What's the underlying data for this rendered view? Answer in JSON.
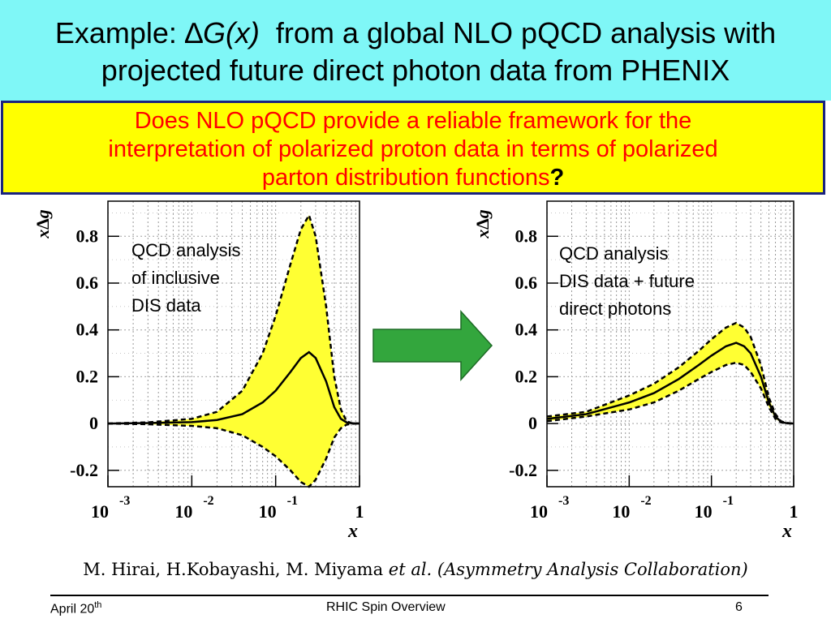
{
  "title": {
    "line1_prefix": "Example: ",
    "line1_symbol": "∆",
    "line1_italic": "G(x)",
    "line1_rest": "  from a global NLO pQCD analysis with",
    "line2": "projected future direct photon data from PHENIX"
  },
  "question": {
    "line1": "Does NLO pQCD provide a reliable framework for the",
    "line2": "interpretation of polarized proton data in terms of polarized",
    "line3_text": "parton distribution functions",
    "line3_mark": "?"
  },
  "credit": {
    "authors": "M. Hirai, H.Kobayashi, M. Miyama ",
    "italic": "et al. (Asymmetry Analysis Collaboration)"
  },
  "footer": {
    "date": "April 20",
    "date_sup": "th",
    "center": "RHIC Spin Overview",
    "page": "6"
  },
  "colors": {
    "title_band": "#7ff7f7",
    "question_box": "#ffff00",
    "question_text": "#ff0000",
    "band_fill": "#ffff33",
    "arrow_fill": "#33a63d"
  },
  "arrow": {
    "icon": "right-arrow-icon"
  },
  "chart_data": [
    {
      "type": "line",
      "ylabel": "x∆g",
      "xlabel": "x",
      "xscale": "log",
      "xlim": [
        0.001,
        1
      ],
      "ylim": [
        -0.27,
        0.95
      ],
      "x_ticks": [
        {
          "base": "10",
          "exp": "-3"
        },
        {
          "base": "10",
          "exp": "-2"
        },
        {
          "base": "10",
          "exp": "-1"
        },
        {
          "base": "1",
          "exp": ""
        }
      ],
      "y_ticks": [
        "0.8",
        "0.6",
        "0.4",
        "0.2",
        "0",
        "-0.2"
      ],
      "grid": true,
      "annotation": [
        "QCD analysis",
        "of inclusive",
        "DIS data"
      ],
      "x": [
        0.001,
        0.003,
        0.01,
        0.02,
        0.04,
        0.07,
        0.1,
        0.15,
        0.2,
        0.25,
        0.3,
        0.4,
        0.5,
        0.6,
        0.7,
        0.8,
        1.0
      ],
      "series": [
        {
          "values": [
            0.0,
            0.002,
            0.006,
            0.015,
            0.04,
            0.09,
            0.14,
            0.22,
            0.28,
            0.305,
            0.28,
            0.18,
            0.07,
            0.02,
            0.005,
            0.001,
            0.0
          ]
        },
        {
          "values": [
            0.0,
            0.005,
            0.02,
            0.05,
            0.14,
            0.3,
            0.46,
            0.68,
            0.83,
            0.89,
            0.8,
            0.5,
            0.2,
            0.06,
            0.01,
            0.002,
            0.0
          ]
        },
        {
          "values": [
            0.0,
            -0.003,
            -0.01,
            -0.02,
            -0.05,
            -0.1,
            -0.14,
            -0.2,
            -0.25,
            -0.27,
            -0.24,
            -0.15,
            -0.06,
            -0.02,
            -0.005,
            -0.001,
            0.0
          ]
        }
      ]
    },
    {
      "type": "line",
      "ylabel": "x∆g",
      "xlabel": "x",
      "xscale": "log",
      "xlim": [
        0.001,
        1
      ],
      "ylim": [
        -0.27,
        0.95
      ],
      "x_ticks": [
        {
          "base": "10",
          "exp": "-3"
        },
        {
          "base": "10",
          "exp": "-2"
        },
        {
          "base": "10",
          "exp": "-1"
        },
        {
          "base": "1",
          "exp": ""
        }
      ],
      "y_ticks": [
        "0.8",
        "0.6",
        "0.4",
        "0.2",
        "0",
        "-0.2"
      ],
      "grid": true,
      "annotation": [
        "QCD analysis",
        "DIS data + future",
        "direct photons"
      ],
      "x": [
        0.001,
        0.003,
        0.01,
        0.02,
        0.04,
        0.07,
        0.1,
        0.15,
        0.2,
        0.25,
        0.3,
        0.4,
        0.5,
        0.6,
        0.7,
        0.8,
        1.0
      ],
      "series": [
        {
          "values": [
            0.02,
            0.04,
            0.09,
            0.13,
            0.19,
            0.25,
            0.29,
            0.33,
            0.345,
            0.33,
            0.3,
            0.2,
            0.09,
            0.03,
            0.008,
            0.002,
            0.0
          ]
        },
        {
          "values": [
            0.03,
            0.05,
            0.12,
            0.17,
            0.24,
            0.31,
            0.36,
            0.41,
            0.43,
            0.41,
            0.37,
            0.25,
            0.11,
            0.04,
            0.01,
            0.003,
            0.0
          ]
        },
        {
          "values": [
            0.01,
            0.03,
            0.06,
            0.09,
            0.14,
            0.19,
            0.22,
            0.25,
            0.26,
            0.25,
            0.22,
            0.15,
            0.07,
            0.02,
            0.005,
            0.001,
            0.0
          ]
        }
      ]
    }
  ]
}
